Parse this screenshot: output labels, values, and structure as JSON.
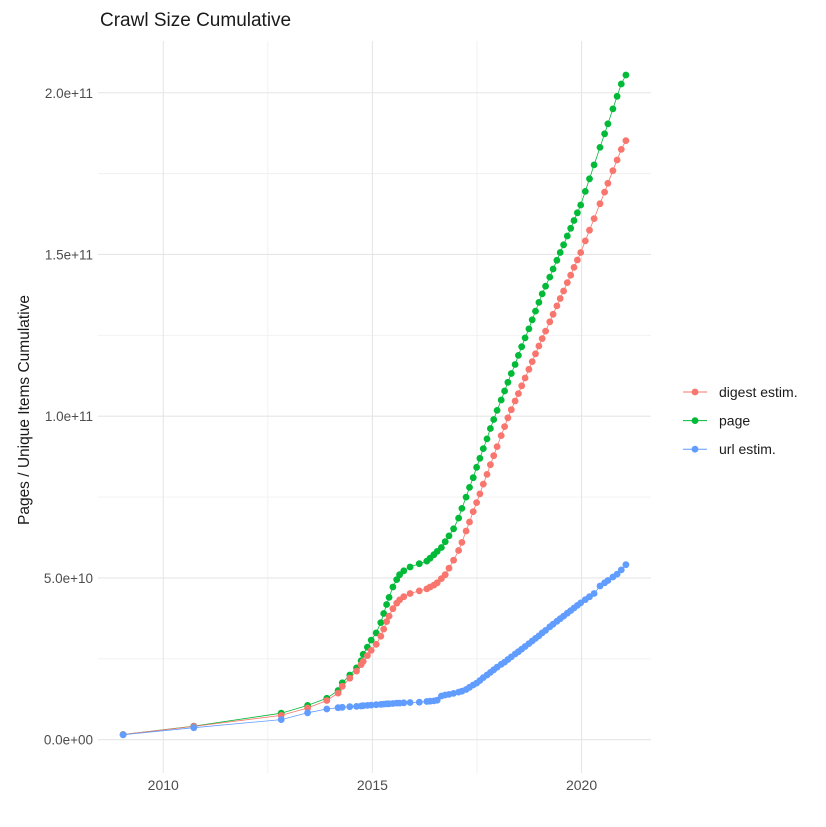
{
  "chart_data": {
    "type": "scatter",
    "title": "Crawl Size Cumulative",
    "xlabel": "",
    "ylabel": "Pages / Unique Items Cumulative",
    "legend_position": "right",
    "grid": true,
    "background": "#ffffff",
    "grid_major_color": "#e6e6e6",
    "grid_minor_color": "#f0f0f0",
    "tick_label_color": "#4d4d4d",
    "legend_text_color": "#1a1a1a",
    "value_unit": "1e9 (billions)",
    "x_domain": [
      2008.44,
      2021.66
    ],
    "y_domain": [
      -10.3,
      216.0
    ],
    "x_ticks": [
      {
        "v": 2010,
        "label": "2010"
      },
      {
        "v": 2015,
        "label": "2015"
      },
      {
        "v": 2020,
        "label": "2020"
      }
    ],
    "x_minor_ticks": [
      2012.5,
      2017.5
    ],
    "y_ticks": [
      {
        "v": 0,
        "label": "0.0e+00"
      },
      {
        "v": 50,
        "label": "5.0e+10"
      },
      {
        "v": 100,
        "label": "1.0e+11"
      },
      {
        "v": 150,
        "label": "1.5e+11"
      },
      {
        "v": 200,
        "label": "2.0e+11"
      }
    ],
    "y_minor_ticks": [
      25,
      75,
      125,
      175
    ],
    "x": [
      2009.04,
      2010.73,
      2012.82,
      2013.45,
      2013.91,
      2014.18,
      2014.28,
      2014.46,
      2014.62,
      2014.73,
      2014.78,
      2014.88,
      2014.97,
      2015.09,
      2015.2,
      2015.27,
      2015.34,
      2015.4,
      2015.49,
      2015.58,
      2015.65,
      2015.75,
      2015.9,
      2016.12,
      2016.3,
      2016.38,
      2016.47,
      2016.55,
      2016.65,
      2016.74,
      2016.83,
      2016.94,
      2017.06,
      2017.14,
      2017.24,
      2017.32,
      2017.41,
      2017.49,
      2017.57,
      2017.65,
      2017.74,
      2017.82,
      2017.9,
      2017.98,
      2018.08,
      2018.16,
      2018.24,
      2018.32,
      2018.41,
      2018.49,
      2018.57,
      2018.65,
      2018.74,
      2018.82,
      2018.9,
      2018.98,
      2019.06,
      2019.14,
      2019.24,
      2019.32,
      2019.41,
      2019.49,
      2019.57,
      2019.66,
      2019.74,
      2019.82,
      2019.9,
      2019.98,
      2020.09,
      2020.19,
      2020.3,
      2020.44,
      2020.55,
      2020.63,
      2020.75,
      2020.85,
      2020.95,
      2021.06
    ],
    "series": [
      {
        "name": "digest estim.",
        "color": "#F8766D",
        "values": [
          1.6,
          4.1,
          7.5,
          9.8,
          12.1,
          14.4,
          16.5,
          19.0,
          21.2,
          23.2,
          24.2,
          26.0,
          27.6,
          29.5,
          32.0,
          34.2,
          36.5,
          38.2,
          40.5,
          42.2,
          43.2,
          44.2,
          45.2,
          46.0,
          46.6,
          47.2,
          47.8,
          48.5,
          49.8,
          51.0,
          53.0,
          55.5,
          58.5,
          61.0,
          64.5,
          67.3,
          70.5,
          73.3,
          76.0,
          79.0,
          82.0,
          85.0,
          87.8,
          90.6,
          94.0,
          96.8,
          99.5,
          102.0,
          104.7,
          107.0,
          109.4,
          111.8,
          114.5,
          116.9,
          119.3,
          121.7,
          124.0,
          126.3,
          129.2,
          131.5,
          134.1,
          136.4,
          138.7,
          141.3,
          143.6,
          146.0,
          148.3,
          150.6,
          154.2,
          157.5,
          161.1,
          165.7,
          169.3,
          172.0,
          175.9,
          179.2,
          182.5,
          185.2
        ]
      },
      {
        "name": "page",
        "color": "#00BA38",
        "values": [
          1.6,
          4.2,
          8.2,
          10.6,
          12.8,
          15.2,
          17.6,
          20.0,
          22.2,
          24.4,
          26.4,
          28.6,
          30.8,
          33.0,
          36.2,
          39.0,
          41.8,
          44.0,
          47.2,
          49.5,
          51.0,
          52.2,
          53.4,
          54.4,
          55.2,
          56.1,
          57.2,
          58.2,
          59.4,
          61.2,
          63.0,
          65.2,
          68.5,
          71.5,
          75.0,
          78.0,
          81.0,
          84.2,
          87.0,
          90.0,
          93.0,
          96.2,
          99.0,
          101.8,
          105.0,
          107.8,
          110.5,
          113.2,
          116.0,
          118.8,
          121.5,
          124.2,
          127.0,
          129.8,
          132.5,
          135.2,
          137.8,
          140.2,
          143.0,
          145.5,
          148.2,
          150.6,
          153.0,
          155.7,
          158.1,
          160.5,
          162.9,
          165.3,
          169.5,
          173.4,
          177.7,
          183.1,
          187.3,
          190.4,
          195.0,
          198.9,
          202.7,
          205.5
        ]
      },
      {
        "name": "url estim.",
        "color": "#619CFF",
        "values": [
          1.5,
          3.7,
          6.2,
          8.3,
          9.5,
          9.9,
          10.0,
          10.2,
          10.3,
          10.4,
          10.5,
          10.6,
          10.7,
          10.8,
          10.9,
          11.0,
          11.1,
          11.1,
          11.2,
          11.3,
          11.3,
          11.4,
          11.5,
          11.6,
          11.8,
          11.9,
          12.0,
          12.2,
          13.5,
          13.8,
          14.0,
          14.3,
          14.7,
          15.0,
          15.5,
          16.2,
          16.9,
          17.5,
          18.3,
          19.2,
          20.0,
          20.8,
          21.6,
          22.4,
          23.3,
          24.0,
          24.8,
          25.6,
          26.5,
          27.2,
          28.0,
          28.8,
          29.7,
          30.5,
          31.3,
          32.1,
          33.0,
          33.8,
          34.9,
          35.7,
          36.6,
          37.4,
          38.2,
          39.1,
          39.9,
          40.7,
          41.5,
          42.3,
          43.3,
          44.2,
          45.2,
          47.5,
          48.5,
          49.2,
          50.3,
          51.2,
          52.5,
          54.1
        ]
      }
    ]
  }
}
